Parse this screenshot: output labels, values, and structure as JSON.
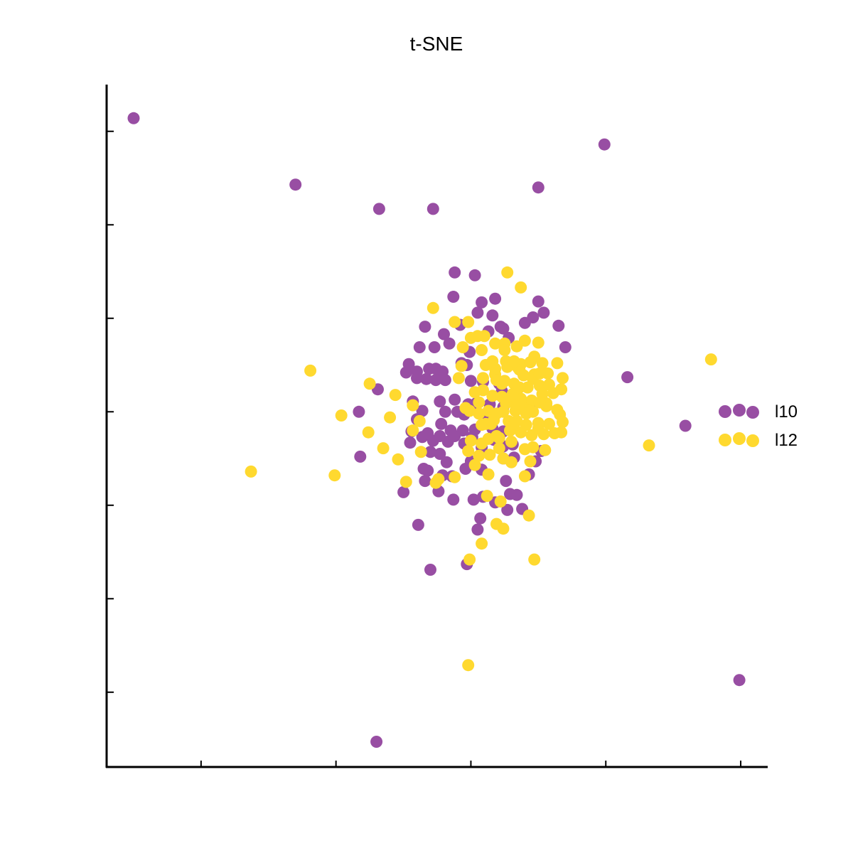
{
  "chart_data": {
    "type": "scatter",
    "title": "t-SNE",
    "xlabel": "",
    "ylabel": "",
    "xlim": [
      -33,
      16
    ],
    "ylim": [
      -38,
      35
    ],
    "xticks": [
      -26,
      -16,
      -6,
      4,
      14
    ],
    "yticks": [
      -30,
      -20,
      -10,
      0,
      10,
      20,
      30
    ],
    "grid": false,
    "legend_position": "right",
    "series": [
      {
        "name": "l10",
        "color": "#984ea3",
        "points": [
          [
            -31.0,
            31.4
          ],
          [
            -19.0,
            24.3
          ],
          [
            -12.8,
            21.7
          ],
          [
            -8.8,
            21.7
          ],
          [
            -1.0,
            24.0
          ],
          [
            3.9,
            28.6
          ],
          [
            -7.2,
            14.9
          ],
          [
            -5.7,
            14.6
          ],
          [
            -7.3,
            12.3
          ],
          [
            -5.2,
            11.7
          ],
          [
            -4.2,
            12.1
          ],
          [
            -5.5,
            10.6
          ],
          [
            -4.4,
            10.3
          ],
          [
            -3.8,
            9.1
          ],
          [
            -3.6,
            8.9
          ],
          [
            -4.7,
            8.6
          ],
          [
            -3.2,
            7.9
          ],
          [
            -9.4,
            9.1
          ],
          [
            -6.8,
            9.3
          ],
          [
            -8.0,
            8.3
          ],
          [
            -7.6,
            7.3
          ],
          [
            -6.1,
            6.4
          ],
          [
            -9.8,
            6.9
          ],
          [
            -8.7,
            6.9
          ],
          [
            -10.6,
            5.1
          ],
          [
            -10.0,
            4.3
          ],
          [
            -10.8,
            4.2
          ],
          [
            -9.1,
            4.6
          ],
          [
            -8.6,
            4.6
          ],
          [
            -8.1,
            4.3
          ],
          [
            -6.7,
            5.2
          ],
          [
            -6.3,
            5.0
          ],
          [
            -10.0,
            3.6
          ],
          [
            -9.3,
            3.5
          ],
          [
            -8.6,
            3.4
          ],
          [
            -7.9,
            3.4
          ],
          [
            -6.0,
            3.3
          ],
          [
            -5.1,
            3.2
          ],
          [
            -3.9,
            3.0
          ],
          [
            -3.7,
            2.2
          ],
          [
            -12.9,
            2.4
          ],
          [
            -10.3,
            1.1
          ],
          [
            -8.3,
            1.1
          ],
          [
            -7.2,
            1.3
          ],
          [
            -6.2,
            0.8
          ],
          [
            -5.6,
            0.9
          ],
          [
            -4.6,
            0.8
          ],
          [
            -3.6,
            0.5
          ],
          [
            -1.5,
            0.7
          ],
          [
            -9.6,
            0.1
          ],
          [
            -7.9,
            0.0
          ],
          [
            -7.0,
            0.0
          ],
          [
            -6.5,
            -0.3
          ],
          [
            -4.8,
            -0.3
          ],
          [
            -14.3,
            0.0
          ],
          [
            -10.0,
            -0.8
          ],
          [
            -8.2,
            -1.3
          ],
          [
            -7.5,
            -2.0
          ],
          [
            -6.6,
            -2.0
          ],
          [
            -5.7,
            -1.9
          ],
          [
            -4.4,
            -1.8
          ],
          [
            -3.6,
            -2.1
          ],
          [
            -10.4,
            -2.1
          ],
          [
            -9.2,
            -2.3
          ],
          [
            -9.6,
            -2.7
          ],
          [
            -8.3,
            -2.6
          ],
          [
            -7.2,
            -2.6
          ],
          [
            -5.9,
            -2.7
          ],
          [
            -4.3,
            -3.0
          ],
          [
            -10.5,
            -3.3
          ],
          [
            -8.8,
            -3.1
          ],
          [
            -7.7,
            -3.2
          ],
          [
            -6.5,
            -3.4
          ],
          [
            -5.2,
            -3.8
          ],
          [
            -3.6,
            -3.7
          ],
          [
            -2.9,
            -3.5
          ],
          [
            -14.2,
            -4.8
          ],
          [
            -9.0,
            -4.3
          ],
          [
            -8.3,
            -4.5
          ],
          [
            -9.5,
            -6.1
          ],
          [
            -7.8,
            -5.4
          ],
          [
            -6.0,
            -5.3
          ],
          [
            -9.2,
            -6.3
          ],
          [
            -6.4,
            -6.1
          ],
          [
            -5.2,
            -6.2
          ],
          [
            -3.6,
            -5.0
          ],
          [
            -2.8,
            -4.9
          ],
          [
            -1.2,
            -5.3
          ],
          [
            -0.8,
            -4.2
          ],
          [
            -7.4,
            -6.9
          ],
          [
            -3.4,
            -7.4
          ],
          [
            -1.7,
            -6.7
          ],
          [
            -9.4,
            -7.4
          ],
          [
            -8.1,
            -6.8
          ],
          [
            -11.0,
            -8.6
          ],
          [
            -8.4,
            -8.5
          ],
          [
            -7.3,
            -9.4
          ],
          [
            -5.8,
            -9.4
          ],
          [
            -5.1,
            -9.1
          ],
          [
            -4.2,
            -9.7
          ],
          [
            -3.1,
            -8.8
          ],
          [
            -2.6,
            -8.9
          ],
          [
            -3.3,
            -10.5
          ],
          [
            -2.2,
            -10.4
          ],
          [
            -5.3,
            -11.4
          ],
          [
            -9.9,
            -12.1
          ],
          [
            -5.5,
            -12.6
          ],
          [
            -9.0,
            -16.9
          ],
          [
            -6.3,
            -16.3
          ],
          [
            13.9,
            -28.7
          ],
          [
            -13.0,
            -35.3
          ],
          [
            9.9,
            -1.5
          ],
          [
            5.6,
            3.7
          ],
          [
            1.0,
            6.9
          ],
          [
            0.5,
            9.2
          ],
          [
            -2.0,
            9.5
          ],
          [
            -1.4,
            10.1
          ],
          [
            -0.6,
            10.6
          ],
          [
            -1.0,
            11.8
          ]
        ]
      },
      {
        "name": "l12",
        "color": "#ffd92f",
        "points": [
          [
            -3.3,
            14.9
          ],
          [
            -2.3,
            13.3
          ],
          [
            -8.8,
            11.1
          ],
          [
            -7.2,
            9.6
          ],
          [
            -6.2,
            9.6
          ],
          [
            -5.5,
            8.1
          ],
          [
            -5.0,
            8.1
          ],
          [
            -6.0,
            7.9
          ],
          [
            -4.2,
            7.3
          ],
          [
            -3.5,
            7.3
          ],
          [
            -2.6,
            7.0
          ],
          [
            -2.0,
            7.6
          ],
          [
            -1.0,
            7.4
          ],
          [
            -6.6,
            6.9
          ],
          [
            -5.2,
            6.6
          ],
          [
            -3.5,
            6.6
          ],
          [
            -1.3,
            5.9
          ],
          [
            -3.4,
            5.4
          ],
          [
            -2.3,
            5.1
          ],
          [
            -1.6,
            5.3
          ],
          [
            -0.7,
            5.2
          ],
          [
            -4.9,
            5.0
          ],
          [
            -4.2,
            4.6
          ],
          [
            -3.3,
            4.8
          ],
          [
            -2.4,
            4.5
          ],
          [
            -2.1,
            3.9
          ],
          [
            -1.3,
            4.0
          ],
          [
            -0.3,
            4.1
          ],
          [
            0.4,
            5.2
          ],
          [
            -6.7,
            4.9
          ],
          [
            -6.9,
            3.6
          ],
          [
            -5.1,
            3.6
          ],
          [
            -4.2,
            4.0
          ],
          [
            -3.7,
            3.0
          ],
          [
            -2.8,
            3.0
          ],
          [
            -1.8,
            2.6
          ],
          [
            -0.9,
            2.8
          ],
          [
            -0.2,
            2.9
          ],
          [
            -0.7,
            1.9
          ],
          [
            -1.5,
            1.2
          ],
          [
            -3.2,
            1.4
          ],
          [
            -2.3,
            1.4
          ],
          [
            -2.1,
            0.5
          ],
          [
            -3.6,
            0.0
          ],
          [
            -2.7,
            0.1
          ],
          [
            -1.4,
            0.0
          ],
          [
            -0.4,
            0.6
          ],
          [
            -4.7,
            0.1
          ],
          [
            -4.1,
            -0.2
          ],
          [
            -3.2,
            -1.0
          ],
          [
            -2.6,
            -1.0
          ],
          [
            -1.9,
            -1.4
          ],
          [
            -1.0,
            -1.8
          ],
          [
            -0.2,
            -1.3
          ],
          [
            0.6,
            -0.3
          ],
          [
            0.8,
            -1.1
          ],
          [
            -5.2,
            -1.4
          ],
          [
            -4.5,
            -1.3
          ],
          [
            -3.1,
            -2.0
          ],
          [
            -2.3,
            -2.2
          ],
          [
            -1.5,
            -2.5
          ],
          [
            -0.6,
            -2.4
          ],
          [
            0.7,
            -2.2
          ],
          [
            -4.7,
            -2.9
          ],
          [
            -3.9,
            -2.8
          ],
          [
            -3.0,
            -3.2
          ],
          [
            -2.0,
            -4.0
          ],
          [
            -1.4,
            -3.8
          ],
          [
            -0.5,
            -4.1
          ],
          [
            -4.6,
            -4.6
          ],
          [
            -3.6,
            -5.0
          ],
          [
            -1.6,
            -5.3
          ],
          [
            -2.0,
            -6.9
          ],
          [
            -8.6,
            -7.6
          ],
          [
            -7.2,
            -7.0
          ],
          [
            -1.7,
            -11.1
          ],
          [
            -5.2,
            -14.1
          ],
          [
            -3.6,
            -12.5
          ],
          [
            -6.1,
            -15.8
          ],
          [
            -1.3,
            -15.8
          ],
          [
            -9.8,
            -1.0
          ],
          [
            -9.7,
            -4.3
          ],
          [
            -11.4,
            -5.1
          ],
          [
            -10.3,
            -2.0
          ],
          [
            -12.0,
            -0.6
          ],
          [
            -12.5,
            -3.9
          ],
          [
            -15.6,
            -0.4
          ],
          [
            -13.6,
            -2.2
          ],
          [
            -13.5,
            3.0
          ],
          [
            -11.6,
            1.8
          ],
          [
            -16.1,
            -6.8
          ],
          [
            -10.3,
            0.7
          ],
          [
            -17.9,
            4.4
          ],
          [
            -22.3,
            -6.4
          ],
          [
            -10.8,
            -7.5
          ],
          [
            -8.4,
            -7.2
          ],
          [
            -6.2,
            -27.1
          ],
          [
            -4.1,
            -12.0
          ],
          [
            -4.8,
            -9.0
          ],
          [
            -3.8,
            -9.6
          ],
          [
            -4.7,
            -6.7
          ],
          [
            -5.7,
            -5.7
          ],
          [
            -5.4,
            -4.7
          ],
          [
            0.2,
            -2.3
          ],
          [
            0.4,
            0.2
          ],
          [
            -0.4,
            0.9
          ],
          [
            -1.7,
            0.1
          ],
          [
            -4.4,
            1.7
          ],
          [
            -3.7,
            1.6
          ],
          [
            -3.0,
            1.1
          ],
          [
            -2.3,
            0.8
          ],
          [
            -0.9,
            1.0
          ],
          [
            0.1,
            2.0
          ],
          [
            0.8,
            3.6
          ],
          [
            0.7,
            2.4
          ],
          [
            -2.5,
            4.7
          ],
          [
            -2.8,
            5.4
          ],
          [
            -5.7,
            2.1
          ],
          [
            -5.1,
            2.3
          ],
          [
            11.8,
            5.6
          ],
          [
            7.2,
            -3.6
          ],
          [
            -4.9,
            -1.3
          ],
          [
            -6.2,
            -4.2
          ],
          [
            -6.0,
            -3.1
          ],
          [
            -3.0,
            -5.4
          ],
          [
            -5.4,
            -0.2
          ],
          [
            -6.4,
            0.4
          ],
          [
            -3.9,
            -3.9
          ],
          [
            -1.0,
            -1.2
          ],
          [
            -1.9,
            -0.2
          ],
          [
            -3.4,
            0.9
          ],
          [
            -2.9,
            1.9
          ],
          [
            -1.4,
            3.5
          ],
          [
            -0.9,
            4.1
          ],
          [
            -3.5,
            3.3
          ],
          [
            -4.1,
            3.4
          ],
          [
            -2.4,
            2.6
          ],
          [
            -4.4,
            5.4
          ],
          [
            -5.4,
            1.0
          ],
          [
            -6.1,
            0.1
          ],
          [
            -2.8,
            -1.3
          ],
          [
            -4.3,
            -0.9
          ],
          [
            -5.2,
            -3.4
          ],
          [
            -4.1,
            -2.6
          ]
        ]
      }
    ]
  }
}
